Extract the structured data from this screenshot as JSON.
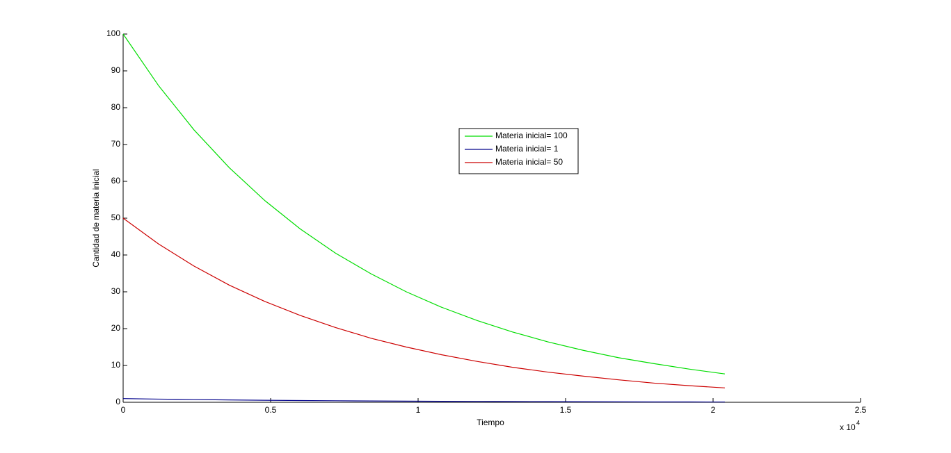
{
  "chart_data": {
    "type": "line",
    "x_label": "Tiempo",
    "y_label": "Cantidad de materia inicial",
    "x_scale_label": {
      "base": "x 10",
      "exponent": "4"
    },
    "x": [
      0,
      0.12,
      0.24,
      0.36,
      0.48,
      0.6,
      0.72,
      0.84,
      0.96,
      1.08,
      1.2,
      1.32,
      1.44,
      1.56,
      1.68,
      1.8,
      1.92,
      2.04
    ],
    "series": [
      {
        "name": "Materia inicial= 100",
        "color": "#00dd00",
        "values": [
          100,
          86.0,
          74.0,
          63.7,
          54.8,
          47.1,
          40.5,
          34.9,
          30.0,
          25.8,
          22.2,
          19.1,
          16.4,
          14.1,
          12.1,
          10.5,
          9.0,
          7.7
        ]
      },
      {
        "name": "Materia inicial= 1",
        "color": "#00008b",
        "values": [
          1,
          0.86,
          0.74,
          0.64,
          0.55,
          0.47,
          0.41,
          0.35,
          0.3,
          0.26,
          0.22,
          0.19,
          0.16,
          0.14,
          0.12,
          0.1,
          0.09,
          0.08
        ]
      },
      {
        "name": "Materia inicial= 50",
        "color": "#cc0000",
        "values": [
          50,
          43.0,
          37.0,
          31.8,
          27.4,
          23.6,
          20.3,
          17.4,
          15.0,
          12.9,
          11.1,
          9.5,
          8.2,
          7.1,
          6.1,
          5.2,
          4.5,
          3.9
        ]
      }
    ],
    "xlim": [
      0,
      2.5
    ],
    "xticks": [
      0,
      0.5,
      1,
      1.5,
      2,
      2.5
    ],
    "ylim": [
      0,
      100
    ],
    "yticks": [
      0,
      10,
      20,
      30,
      40,
      50,
      60,
      70,
      80,
      90,
      100
    ],
    "grid": false,
    "legend": "top-center"
  }
}
